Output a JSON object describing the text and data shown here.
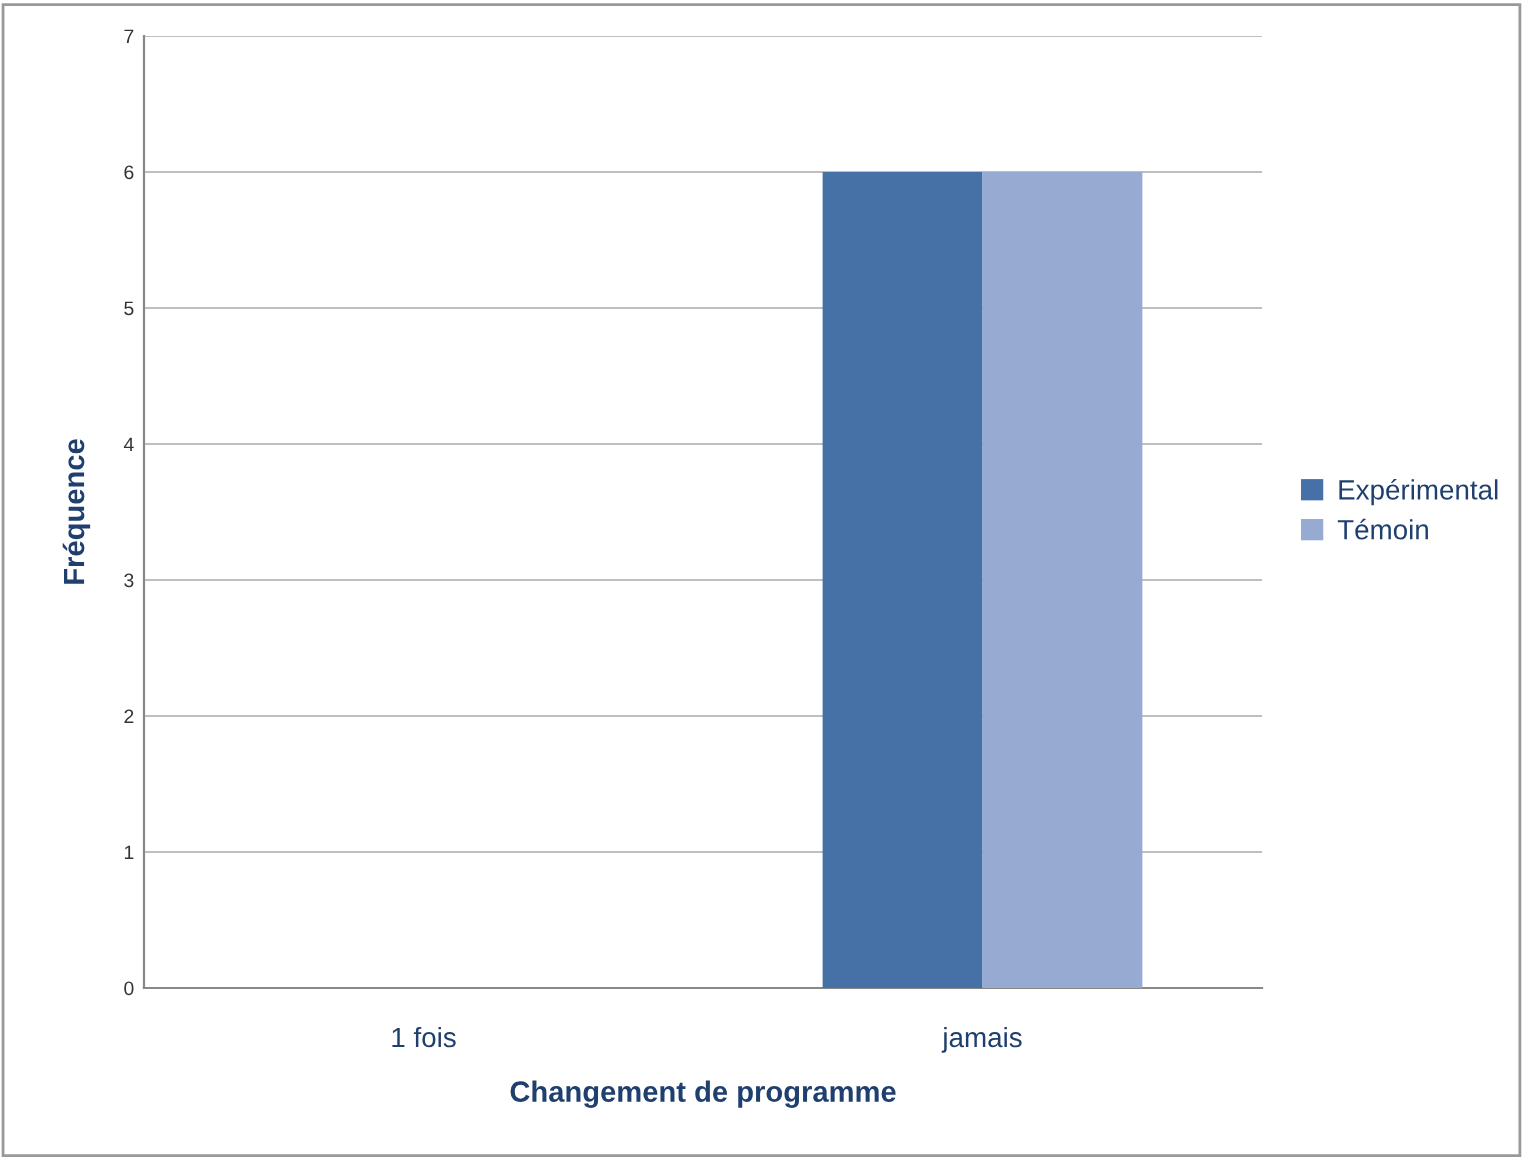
{
  "chart_data": {
    "type": "bar",
    "xlabel": "Changement de programme",
    "ylabel": "Fréquence",
    "categories": [
      "1 fois",
      "jamais"
    ],
    "series": [
      {
        "name": "Expérimental",
        "color": "#4571a6",
        "values": [
          0,
          6
        ]
      },
      {
        "name": "Témoin",
        "color": "#96aad2",
        "values": [
          0,
          6
        ]
      }
    ],
    "ylim": [
      0,
      7
    ],
    "yticks": [
      0,
      1,
      2,
      3,
      4,
      5,
      6,
      7
    ],
    "grid": "y",
    "legend": "right"
  }
}
